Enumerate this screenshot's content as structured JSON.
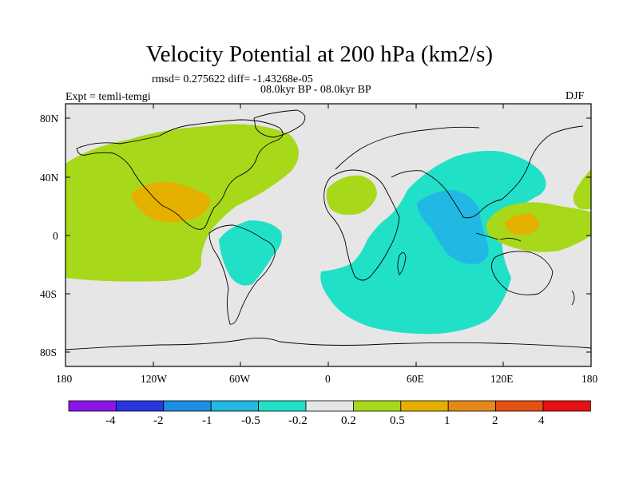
{
  "header": {
    "title": "Velocity Potential at 200 hPa (km2/s)",
    "stats": "rmsd= 0.275622 diff= -1.43268e-05",
    "period": "08.0kyr BP - 08.0kyr BP",
    "experiment": "Expt = temli-temgi",
    "season": "DJF"
  },
  "axes": {
    "y_ticks": [
      "80N",
      "40N",
      "0",
      "40S",
      "80S"
    ],
    "x_ticks": [
      "180",
      "120W",
      "60W",
      "0",
      "60E",
      "120E",
      "180"
    ]
  },
  "colorbar": {
    "labels": [
      "-4",
      "-2",
      "-1",
      "-0.5",
      "-0.2",
      "0.2",
      "0.5",
      "1",
      "2",
      "4"
    ],
    "colors": [
      "#8a17e8",
      "#2a37e0",
      "#1d8ee0",
      "#22b8e4",
      "#20e0c8",
      "#e6e6e6",
      "#a8d81a",
      "#e6b000",
      "#e68818",
      "#e45010",
      "#e81010"
    ]
  },
  "chart_data": {
    "type": "map",
    "title": "Velocity Potential at 200 hPa (km2/s)",
    "variable": "velocity potential difference, 200 hPa",
    "units": "km2/s",
    "levels": [
      -4,
      -2,
      -1,
      -0.5,
      -0.2,
      0.2,
      0.5,
      1,
      2,
      4
    ],
    "lon_range": [
      -180,
      180
    ],
    "lat_range": [
      -90,
      90
    ],
    "season": "DJF",
    "features": [
      {
        "region": "North Pacific / North America",
        "sign": "positive",
        "range": "0.2 to 0.5"
      },
      {
        "region": "Mexico / Gulf of Mexico",
        "sign": "positive",
        "range": "0.5 to 1"
      },
      {
        "region": "Eastern Pacific off South America",
        "sign": "positive",
        "range": "0.2 to 0.5"
      },
      {
        "region": "Tropical South America / South Atlantic",
        "sign": "negative",
        "range": "-0.5 to -0.2"
      },
      {
        "region": "North Africa / Mediterranean",
        "sign": "positive",
        "range": "0.2 to 0.5"
      },
      {
        "region": "Indian Ocean / Asia",
        "sign": "negative",
        "range": "-0.5 to -0.2"
      },
      {
        "region": "Arabian Sea / Bay of Bengal / Indonesia",
        "sign": "negative",
        "range": "-1 to -0.5"
      },
      {
        "region": "Philippines / Western Pacific",
        "sign": "positive",
        "range": "0.2 to 0.5"
      },
      {
        "region": "Philippine Sea core",
        "sign": "positive",
        "range": "0.5 to 1"
      }
    ]
  }
}
